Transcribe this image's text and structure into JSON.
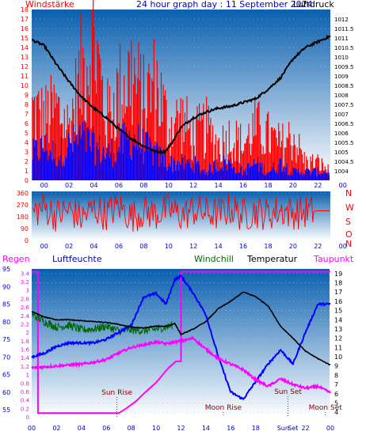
{
  "header": {
    "left_label": "Windstärke",
    "title": "24 hour graph day : 11 September 2024",
    "right_label": "Luftdruck"
  },
  "colors": {
    "panel_top": "#0a5fae",
    "panel_bottom": "#ffffff",
    "wind": "#ff0000",
    "gust_blue": "#0000ff",
    "pressure": "#000000",
    "humidity": "#0000ff",
    "dewpoint": "#ff00ff",
    "windchill": "#006600",
    "temperature": "#000000",
    "solar": "#ff00ff",
    "axis_blue": "#0000cc",
    "event_text": "#8b0000"
  },
  "x_ticks": [
    "00",
    "02",
    "04",
    "06",
    "08",
    "10",
    "12",
    "14",
    "16",
    "18",
    "20",
    "22",
    "00"
  ],
  "chart_data": [
    {
      "type": "bar",
      "name_left": "Windstärke",
      "name_right": "Luftdruck",
      "x_range_hours": [
        23,
        47
      ],
      "left_axis": {
        "range": [
          0,
          18
        ],
        "ticks": [
          0,
          1,
          2,
          3,
          4,
          5,
          6,
          7,
          8,
          9,
          10,
          11,
          12,
          13,
          14,
          15,
          16,
          17,
          18
        ]
      },
      "right_axis": {
        "range": [
          1003.5,
          1012.5
        ],
        "ticks": [
          "1004",
          "1004.5",
          "1005",
          "1005.5",
          "1006",
          "1006.5",
          "1007",
          "1007.5",
          "1008",
          "1008.5",
          "1009",
          "1009.5",
          "1010",
          "1010.5",
          "1011",
          "1011.5",
          "1012"
        ]
      },
      "pressure_hpa": [
        [
          23.0,
          1010.9
        ],
        [
          24.0,
          1010.6
        ],
        [
          25.0,
          1009.6
        ],
        [
          26.0,
          1008.7
        ],
        [
          27.0,
          1007.9
        ],
        [
          28.0,
          1007.3
        ],
        [
          29.0,
          1006.8
        ],
        [
          30.0,
          1006.2
        ],
        [
          31.0,
          1005.7
        ],
        [
          32.0,
          1005.3
        ],
        [
          33.0,
          1005.0
        ],
        [
          33.7,
          1005.0
        ],
        [
          34.2,
          1005.4
        ],
        [
          35.0,
          1006.3
        ],
        [
          36.0,
          1006.8
        ],
        [
          37.0,
          1007.1
        ],
        [
          38.0,
          1007.3
        ],
        [
          39.0,
          1007.4
        ],
        [
          40.0,
          1007.6
        ],
        [
          41.0,
          1007.8
        ],
        [
          42.0,
          1008.3
        ],
        [
          43.0,
          1008.9
        ],
        [
          44.0,
          1009.9
        ],
        [
          45.0,
          1010.5
        ],
        [
          46.0,
          1010.8
        ],
        [
          47.0,
          1011.1
        ]
      ],
      "wind_summary": [
        [
          23,
          8
        ],
        [
          24,
          7
        ],
        [
          25,
          8
        ],
        [
          26,
          6
        ],
        [
          27,
          12
        ],
        [
          28,
          16
        ],
        [
          29,
          7
        ],
        [
          30,
          10
        ],
        [
          31,
          12
        ],
        [
          32,
          9
        ],
        [
          33,
          11
        ],
        [
          34,
          6
        ],
        [
          35,
          7
        ],
        [
          36,
          5
        ],
        [
          37,
          6
        ],
        [
          38,
          4
        ],
        [
          39,
          5
        ],
        [
          40,
          4
        ],
        [
          41,
          6
        ],
        [
          42,
          5
        ],
        [
          43,
          4
        ],
        [
          44,
          5
        ],
        [
          45,
          2
        ],
        [
          46,
          2
        ],
        [
          47,
          1
        ]
      ],
      "gust_summary": [
        [
          23,
          3
        ],
        [
          24,
          4
        ],
        [
          25,
          3
        ],
        [
          26,
          4
        ],
        [
          27,
          5
        ],
        [
          28,
          4
        ],
        [
          29,
          3
        ],
        [
          30,
          4
        ],
        [
          31,
          5
        ],
        [
          32,
          4
        ],
        [
          33,
          3
        ],
        [
          34,
          2
        ],
        [
          35,
          2
        ],
        [
          36,
          2
        ],
        [
          37,
          1
        ],
        [
          38,
          2
        ],
        [
          39,
          2
        ],
        [
          40,
          1
        ],
        [
          41,
          2
        ],
        [
          42,
          1
        ],
        [
          43,
          2
        ],
        [
          44,
          1
        ],
        [
          45,
          1
        ],
        [
          46,
          1
        ],
        [
          47,
          1
        ]
      ]
    },
    {
      "type": "line",
      "name": "wind direction",
      "x_range_hours": [
        23,
        47
      ],
      "left_axis": {
        "range": [
          0,
          360
        ],
        "ticks": [
          "0",
          "90",
          "180",
          "270",
          "360"
        ]
      },
      "direction_labels": [
        "N",
        "W",
        "S",
        "O",
        "N"
      ],
      "direction_deg": [
        [
          23,
          210
        ],
        [
          24,
          250
        ],
        [
          25,
          190
        ],
        [
          26,
          230
        ],
        [
          27,
          170
        ],
        [
          28,
          240
        ],
        [
          29,
          200
        ],
        [
          30,
          260
        ],
        [
          31,
          180
        ],
        [
          32,
          220
        ],
        [
          33,
          200
        ],
        [
          34,
          240
        ],
        [
          35,
          190
        ],
        [
          36,
          230
        ],
        [
          37,
          210
        ],
        [
          38,
          200
        ],
        [
          39,
          240
        ],
        [
          40,
          190
        ],
        [
          41,
          220
        ],
        [
          42,
          200
        ],
        [
          43,
          230
        ],
        [
          44,
          210
        ],
        [
          45,
          215
        ],
        [
          46,
          225
        ],
        [
          47,
          225
        ]
      ]
    },
    {
      "type": "line",
      "x_range_hours": [
        23,
        47
      ],
      "series_labels": {
        "regen": "Regen",
        "humidity": "Luftfeuchte",
        "windchill": "Windchill",
        "temperature": "Temperatur",
        "dewpoint": "Taupunkt"
      },
      "humidity_axis": {
        "range": [
          53,
          95
        ],
        "ticks": [
          "55",
          "60",
          "65",
          "70",
          "75",
          "80",
          "85",
          "90",
          "95"
        ]
      },
      "rain_axis": {
        "range": [
          0,
          3.5
        ],
        "ticks": [
          "0",
          "0.2",
          "0.4",
          "0.6",
          "0.8",
          "1",
          "1.2",
          "1.4",
          "1.6",
          "1.8",
          "2",
          "2.2",
          "2.4",
          "2.6",
          "2.8",
          "3",
          "3.2",
          "3.4"
        ]
      },
      "temp_axis": {
        "range": [
          3.5,
          19.5
        ],
        "ticks": [
          "4",
          "5",
          "6",
          "7",
          "8",
          "9",
          "10",
          "11",
          "12",
          "13",
          "14",
          "15",
          "16",
          "17",
          "18",
          "19"
        ]
      },
      "temperature_c": [
        [
          23.0,
          14.9
        ],
        [
          24.0,
          14.3
        ],
        [
          25.0,
          14.0
        ],
        [
          26.0,
          14.0
        ],
        [
          27.0,
          13.9
        ],
        [
          28.0,
          13.8
        ],
        [
          29.0,
          13.7
        ],
        [
          30.0,
          13.5
        ],
        [
          31.0,
          13.2
        ],
        [
          32.0,
          13.1
        ],
        [
          33.0,
          13.3
        ],
        [
          33.8,
          13.3
        ],
        [
          34.5,
          13.6
        ],
        [
          35.0,
          12.4
        ],
        [
          36.0,
          13.0
        ],
        [
          37.0,
          13.8
        ],
        [
          38.0,
          15.2
        ],
        [
          39.0,
          16.0
        ],
        [
          40.0,
          17.0
        ],
        [
          41.0,
          16.5
        ],
        [
          42.0,
          15.5
        ],
        [
          43.0,
          13.3
        ],
        [
          44.0,
          12.0
        ],
        [
          45.0,
          10.6
        ],
        [
          46.0,
          9.8
        ],
        [
          47.0,
          9.1
        ]
      ],
      "humidity_pct": [
        [
          23.0,
          70
        ],
        [
          24.0,
          71
        ],
        [
          25.0,
          73
        ],
        [
          26.0,
          74
        ],
        [
          27.0,
          74
        ],
        [
          28.0,
          74
        ],
        [
          29.0,
          75
        ],
        [
          30.0,
          77
        ],
        [
          31.0,
          79
        ],
        [
          32.0,
          87
        ],
        [
          33.0,
          88
        ],
        [
          33.8,
          85
        ],
        [
          34.5,
          92
        ],
        [
          35.0,
          93
        ],
        [
          36.0,
          88
        ],
        [
          37.0,
          82
        ],
        [
          38.0,
          70
        ],
        [
          39.0,
          60
        ],
        [
          40.0,
          58
        ],
        [
          41.0,
          63
        ],
        [
          42.0,
          68
        ],
        [
          43.0,
          72
        ],
        [
          44.0,
          68
        ],
        [
          45.0,
          77
        ],
        [
          46.0,
          85
        ],
        [
          47.0,
          85
        ]
      ],
      "dewpoint_c": [
        [
          23.0,
          8.8
        ],
        [
          24.0,
          8.9
        ],
        [
          25.0,
          9.0
        ],
        [
          26.0,
          9.1
        ],
        [
          27.0,
          9.2
        ],
        [
          28.0,
          9.4
        ],
        [
          29.0,
          9.7
        ],
        [
          30.0,
          10.4
        ],
        [
          31.0,
          11.0
        ],
        [
          32.0,
          11.3
        ],
        [
          33.0,
          11.6
        ],
        [
          33.8,
          11.4
        ],
        [
          34.5,
          11.6
        ],
        [
          35.0,
          11.7
        ],
        [
          36.0,
          12.0
        ],
        [
          37.0,
          10.8
        ],
        [
          38.0,
          9.8
        ],
        [
          39.0,
          9.2
        ],
        [
          40.0,
          8.6
        ],
        [
          41.0,
          7.5
        ],
        [
          42.0,
          6.8
        ],
        [
          43.0,
          7.6
        ],
        [
          44.0,
          7.0
        ],
        [
          45.0,
          6.6
        ],
        [
          46.0,
          6.8
        ],
        [
          47.0,
          6.1
        ]
      ],
      "windchill_c": [
        [
          23.0,
          14.6
        ],
        [
          24.0,
          13.8
        ],
        [
          25.0,
          13.2
        ],
        [
          26.0,
          13.4
        ],
        [
          27.0,
          12.9
        ],
        [
          28.0,
          13.0
        ],
        [
          29.0,
          13.3
        ],
        [
          30.0,
          12.8
        ],
        [
          31.0,
          12.9
        ],
        [
          32.0,
          12.8
        ],
        [
          33.0,
          13.0
        ],
        [
          33.8,
          13.2
        ],
        [
          34.3,
          13.4
        ]
      ],
      "solar_step": [
        [
          23.0,
          19.2
        ],
        [
          23.5,
          19.2
        ],
        [
          23.5,
          3.9
        ],
        [
          30.0,
          3.9
        ],
        [
          30.7,
          4.5
        ],
        [
          31.4,
          5.2
        ],
        [
          32.0,
          6.0
        ],
        [
          32.5,
          6.6
        ],
        [
          33.0,
          7.2
        ],
        [
          33.5,
          8.0
        ],
        [
          34.0,
          8.8
        ],
        [
          34.6,
          9.5
        ],
        [
          35.0,
          9.5
        ],
        [
          35.0,
          19.2
        ],
        [
          47.0,
          19.2
        ]
      ],
      "events": [
        {
          "label": "Sun Rise",
          "hour": 29.85
        },
        {
          "label": "Moon Rise",
          "hour": 38.4
        },
        {
          "label": "Sun Set",
          "hour": 43.6
        },
        {
          "label": "Moon Set",
          "hour": 46.6
        }
      ],
      "bottom_ticks": [
        "00",
        "02",
        "04",
        "06",
        "08",
        "10",
        "12",
        "14",
        "16",
        "18",
        "Sun",
        "Set",
        "22",
        "00"
      ]
    }
  ]
}
